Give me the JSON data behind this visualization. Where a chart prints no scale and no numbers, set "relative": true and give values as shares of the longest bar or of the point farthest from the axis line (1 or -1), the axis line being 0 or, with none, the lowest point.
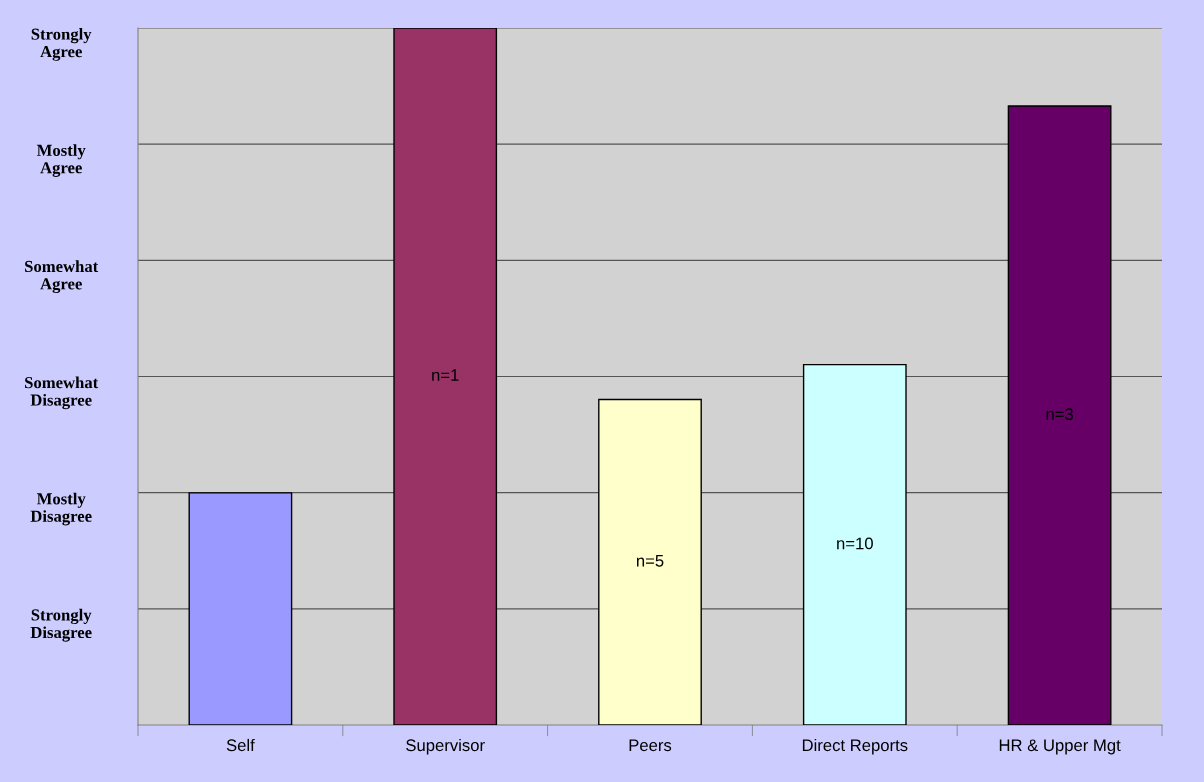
{
  "chart_data": {
    "type": "bar",
    "categories": [
      "Self",
      "Supervisor",
      "Peers",
      "Direct Reports",
      "HR & Upper Mgt"
    ],
    "values": [
      0.333,
      1,
      0.467,
      0.517,
      0.888
    ],
    "colors": [
      "#9999ff",
      "#993366",
      "#ffffcc",
      "#ccffff",
      "#660066"
    ],
    "relative": true,
    "grid": "y",
    "annotations": [
      "Strongly\nAgree",
      "Mostly\nAgree",
      "Somewhat\nAgree",
      "Somewhat\nDisagree",
      "Mostly\nDisagree",
      "Strongly\nDisagree",
      "n=1",
      "n=5",
      "n=10",
      "n=3"
    ]
  }
}
